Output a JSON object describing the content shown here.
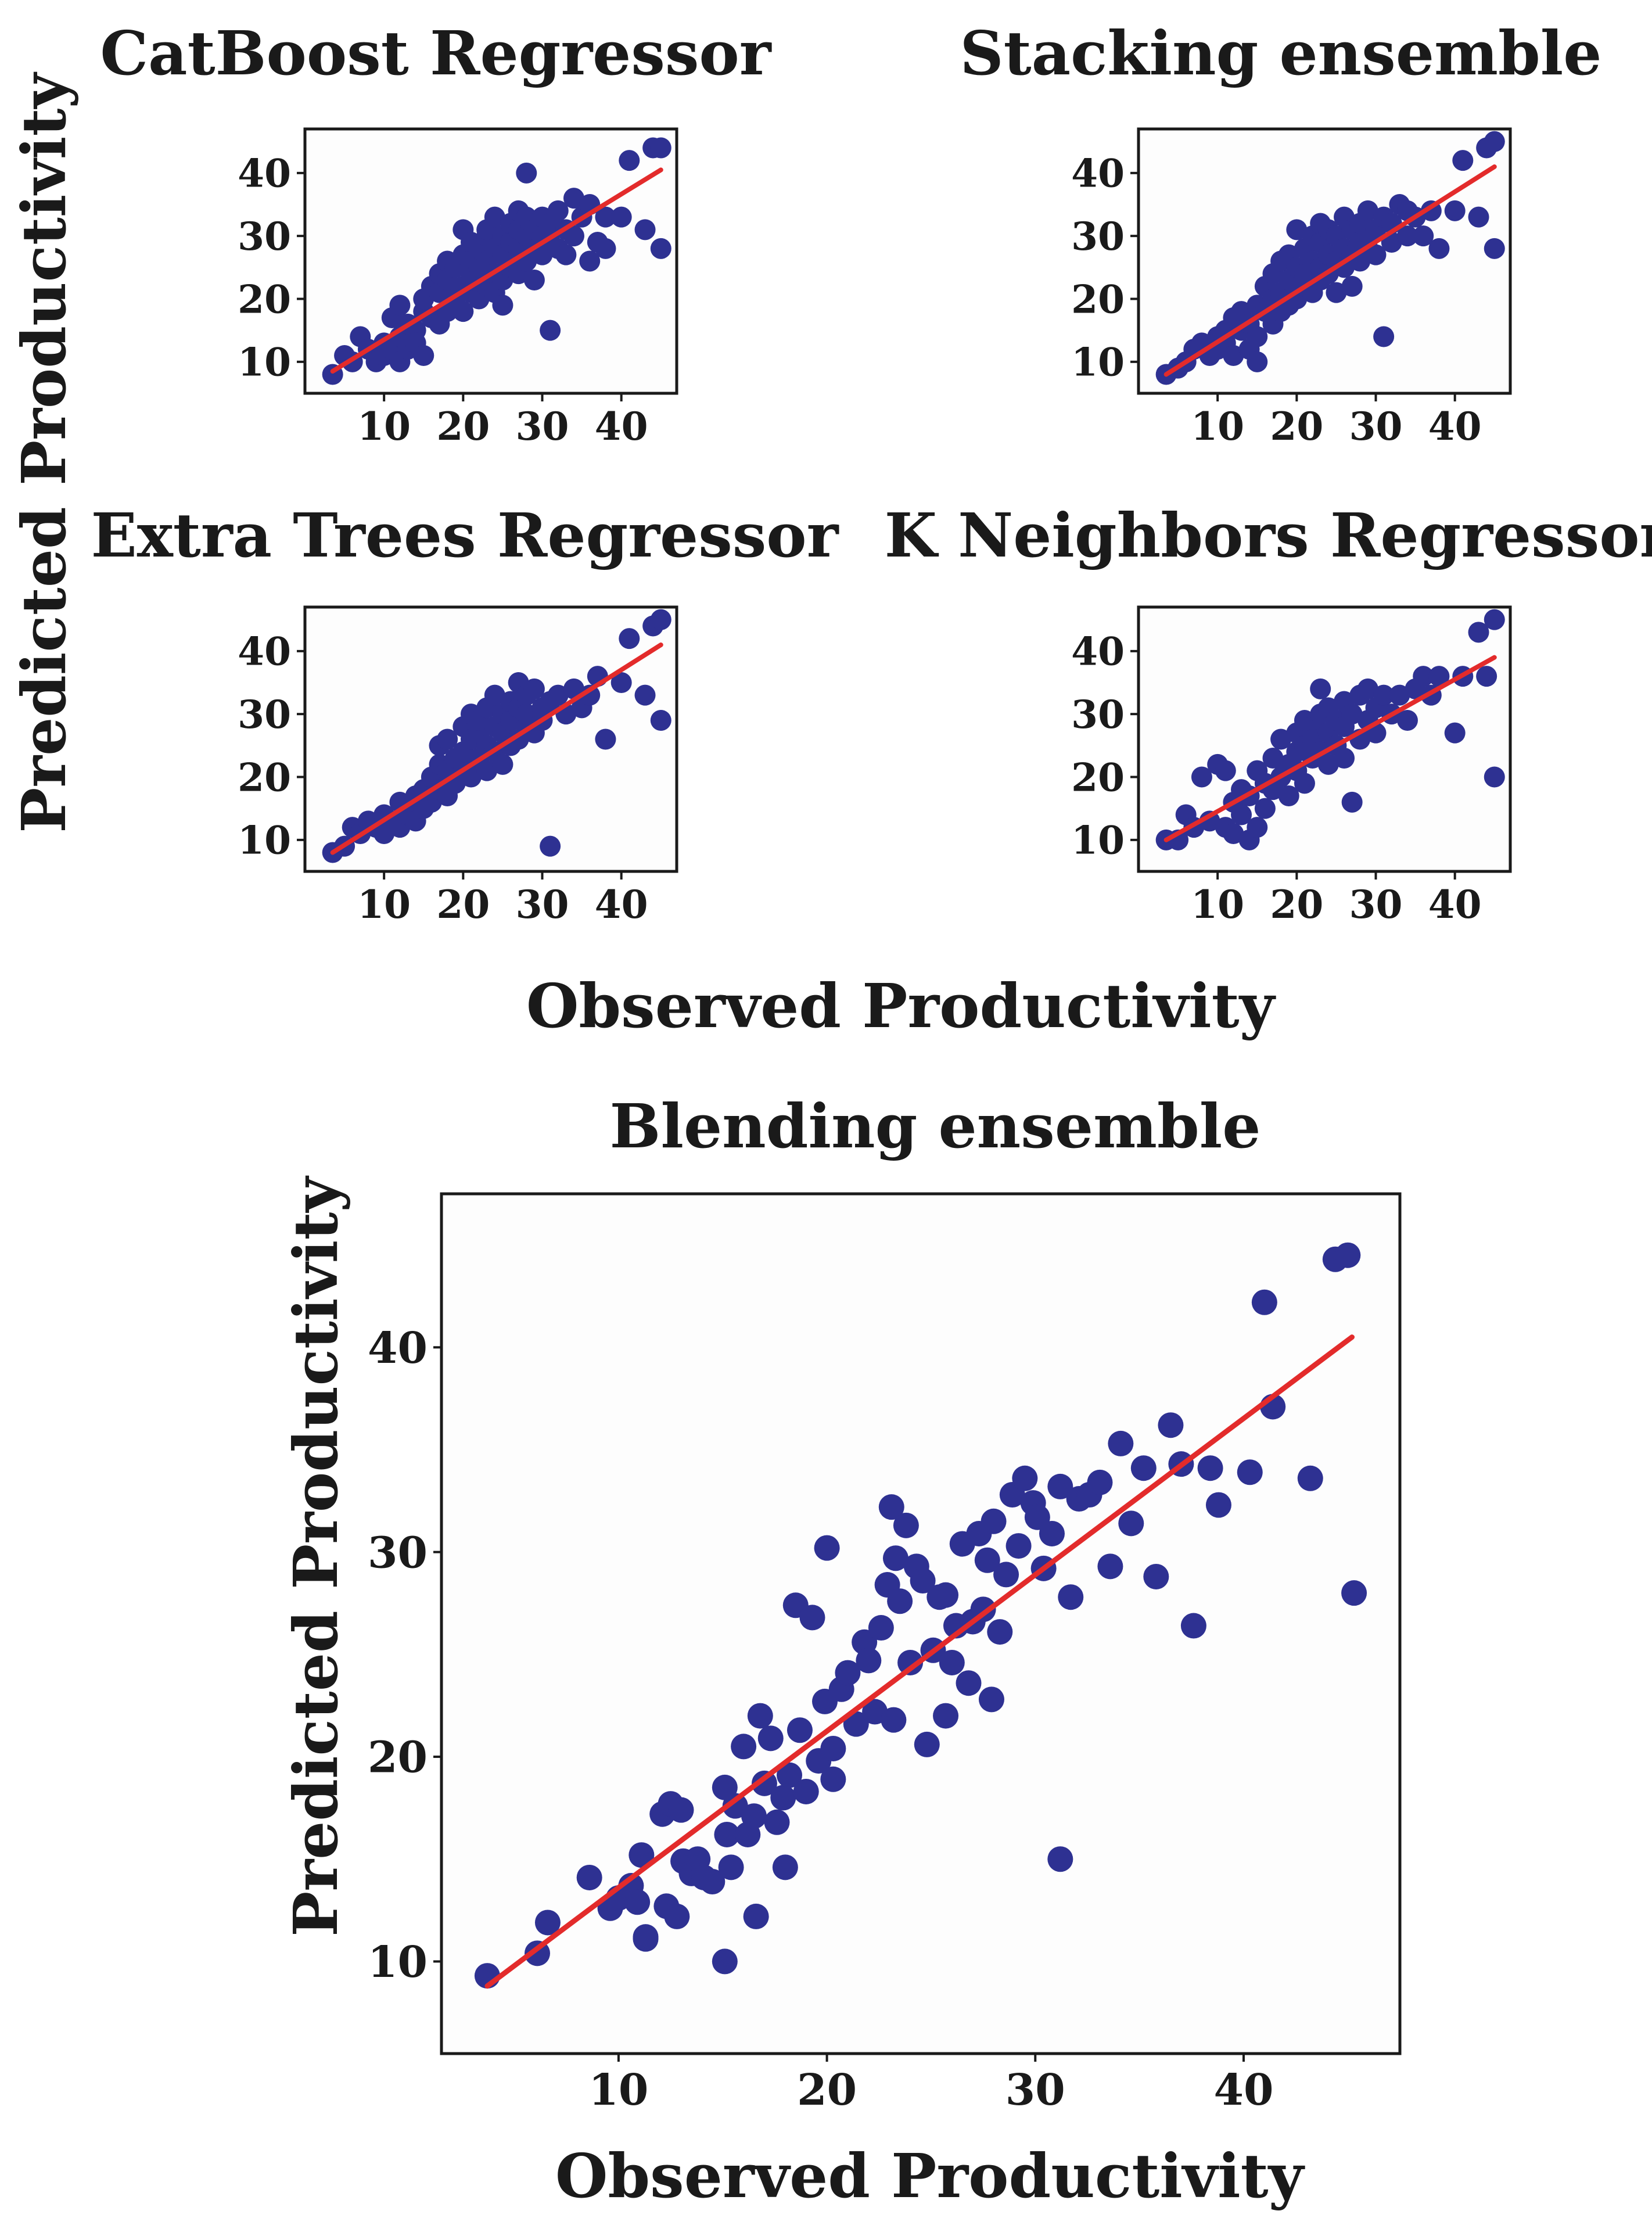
{
  "figure": {
    "shared_ylabel": "Predicted Productivity",
    "shared_xlabel": "Observed Productivity"
  },
  "colors": {
    "point": "#2e3192",
    "fit_line": "#e32b2b",
    "axes": "#1a1a1a",
    "panel_bg": "#fdfdfd"
  },
  "chart_data": [
    {
      "type": "scatter",
      "title": "CatBoost Regressor",
      "xlabel": "",
      "ylabel": "",
      "xlim": [
        0,
        47
      ],
      "ylim": [
        5,
        47
      ],
      "xticks": [
        10,
        20,
        30,
        40
      ],
      "yticks": [
        10,
        20,
        30,
        40
      ],
      "x": [
        3.5,
        5,
        6,
        7,
        8,
        9,
        10,
        10,
        11,
        11,
        12,
        12,
        12,
        13,
        13,
        14,
        14,
        15,
        15,
        15,
        16,
        16,
        17,
        17,
        17,
        18,
        18,
        18,
        19,
        19,
        19,
        20,
        20,
        20,
        20,
        21,
        21,
        21,
        21,
        22,
        22,
        22,
        22,
        23,
        23,
        23,
        23,
        24,
        24,
        24,
        24,
        25,
        25,
        25,
        25,
        26,
        26,
        26,
        27,
        27,
        27,
        27,
        28,
        28,
        28,
        28,
        29,
        29,
        29,
        30,
        30,
        30,
        31,
        31,
        31,
        32,
        32,
        33,
        33,
        34,
        34,
        35,
        36,
        36,
        37,
        38,
        38,
        40,
        41,
        43,
        44,
        45,
        45
      ],
      "y": [
        8,
        11,
        10,
        14,
        12,
        10,
        13,
        11,
        17,
        12,
        14,
        10,
        19,
        16,
        12,
        15,
        13,
        18,
        11,
        20,
        17,
        22,
        21,
        16,
        24,
        18,
        23,
        26,
        20,
        25,
        19,
        22,
        27,
        31,
        18,
        24,
        21,
        29,
        26,
        23,
        28,
        20,
        25,
        30,
        22,
        26,
        31,
        24,
        28,
        33,
        21,
        27,
        23,
        30,
        19,
        29,
        25,
        32,
        28,
        24,
        31,
        34,
        30,
        26,
        33,
        40,
        28,
        31,
        23,
        27,
        33,
        30,
        29,
        32,
        15,
        34,
        28,
        31,
        27,
        36,
        30,
        33,
        35,
        26,
        29,
        33,
        28,
        33,
        42,
        31,
        44,
        44,
        28
      ],
      "fit_line": {
        "x": [
          3.5,
          45
        ],
        "y": [
          8.5,
          40.5
        ]
      }
    },
    {
      "type": "scatter",
      "title": "Stacking ensemble",
      "xlabel": "",
      "ylabel": "",
      "xlim": [
        0,
        47
      ],
      "ylim": [
        5,
        47
      ],
      "xticks": [
        10,
        20,
        30,
        40
      ],
      "yticks": [
        10,
        20,
        30,
        40
      ],
      "x": [
        3.5,
        5,
        6,
        7,
        8,
        9,
        10,
        10,
        11,
        11,
        12,
        12,
        13,
        13,
        14,
        14,
        15,
        15,
        15,
        16,
        16,
        17,
        17,
        17,
        18,
        18,
        18,
        19,
        19,
        19,
        20,
        20,
        20,
        21,
        21,
        21,
        22,
        22,
        22,
        23,
        23,
        23,
        23,
        24,
        24,
        24,
        25,
        25,
        25,
        26,
        26,
        26,
        27,
        27,
        27,
        28,
        28,
        28,
        29,
        29,
        29,
        30,
        30,
        31,
        31,
        32,
        32,
        33,
        34,
        34,
        35,
        36,
        37,
        38,
        40,
        41,
        43,
        44,
        45,
        45
      ],
      "y": [
        8,
        9,
        10,
        12,
        13,
        11,
        14,
        12,
        15,
        13,
        17,
        11,
        18,
        15,
        16,
        12,
        19,
        14,
        10,
        18,
        22,
        20,
        16,
        24,
        21,
        26,
        18,
        23,
        19,
        27,
        25,
        31,
        20,
        22,
        28,
        24,
        26,
        21,
        30,
        23,
        29,
        25,
        32,
        24,
        27,
        31,
        26,
        30,
        21,
        28,
        33,
        25,
        27,
        31,
        22,
        29,
        32,
        26,
        28,
        34,
        30,
        31,
        27,
        33,
        14,
        29,
        32,
        35,
        30,
        34,
        33,
        30,
        34,
        28,
        34,
        42,
        33,
        44,
        45,
        28
      ],
      "fit_line": {
        "x": [
          3.5,
          45
        ],
        "y": [
          8,
          41
        ]
      }
    },
    {
      "type": "scatter",
      "title": "Extra Trees Regressor",
      "xlabel": "",
      "ylabel": "",
      "xlim": [
        0,
        47
      ],
      "ylim": [
        5,
        47
      ],
      "xticks": [
        10,
        20,
        30,
        40
      ],
      "yticks": [
        10,
        20,
        30,
        40
      ],
      "x": [
        3.5,
        5,
        6,
        7,
        8,
        9,
        10,
        10,
        11,
        12,
        12,
        13,
        13,
        14,
        14,
        15,
        15,
        16,
        16,
        17,
        17,
        17,
        18,
        18,
        18,
        19,
        19,
        20,
        20,
        20,
        21,
        21,
        21,
        22,
        22,
        22,
        23,
        23,
        23,
        24,
        24,
        24,
        25,
        25,
        25,
        26,
        26,
        26,
        27,
        27,
        27,
        28,
        28,
        28,
        29,
        29,
        30,
        30,
        31,
        31,
        32,
        33,
        34,
        35,
        36,
        37,
        38,
        40,
        41,
        43,
        44,
        45,
        45
      ],
      "y": [
        8,
        9,
        12,
        11,
        13,
        12,
        14,
        11,
        13,
        16,
        12,
        15,
        14,
        17,
        13,
        18,
        15,
        20,
        16,
        22,
        18,
        25,
        21,
        26,
        17,
        23,
        19,
        28,
        22,
        24,
        26,
        20,
        30,
        23,
        27,
        29,
        25,
        31,
        21,
        28,
        24,
        33,
        27,
        30,
        22,
        29,
        25,
        32,
        31,
        26,
        35,
        28,
        33,
        30,
        27,
        34,
        31,
        29,
        32,
        9,
        33,
        30,
        34,
        31,
        33,
        36,
        26,
        35,
        42,
        33,
        44,
        45,
        29
      ],
      "fit_line": {
        "x": [
          3.5,
          45
        ],
        "y": [
          8,
          41
        ]
      }
    },
    {
      "type": "scatter",
      "title": "K Neighbors Regressor",
      "xlabel": "",
      "ylabel": "",
      "xlim": [
        0,
        47
      ],
      "ylim": [
        5,
        47
      ],
      "xticks": [
        10,
        20,
        30,
        40
      ],
      "yticks": [
        10,
        20,
        30,
        40
      ],
      "x": [
        3.5,
        5,
        6,
        7,
        8,
        9,
        10,
        11,
        11,
        12,
        12,
        13,
        13,
        14,
        14,
        15,
        15,
        16,
        16,
        17,
        17,
        18,
        18,
        19,
        19,
        20,
        20,
        20,
        21,
        21,
        21,
        22,
        22,
        22,
        23,
        23,
        23,
        24,
        24,
        24,
        25,
        25,
        26,
        26,
        26,
        27,
        27,
        28,
        28,
        29,
        29,
        30,
        30,
        31,
        32,
        33,
        34,
        35,
        36,
        37,
        38,
        40,
        41,
        43,
        44,
        45,
        45
      ],
      "y": [
        10,
        10,
        14,
        12,
        20,
        13,
        22,
        12,
        21,
        16,
        11,
        18,
        14,
        10,
        17,
        21,
        12,
        19,
        15,
        23,
        18,
        26,
        20,
        22,
        17,
        27,
        24,
        21,
        25,
        29,
        19,
        23,
        28,
        26,
        30,
        24,
        34,
        22,
        27,
        31,
        25,
        29,
        28,
        23,
        32,
        30,
        16,
        26,
        33,
        29,
        34,
        31,
        27,
        33,
        30,
        33,
        29,
        34,
        36,
        33,
        36,
        27,
        36,
        43,
        36,
        45,
        20
      ],
      "fit_line": {
        "x": [
          3.5,
          45
        ],
        "y": [
          10,
          39
        ]
      }
    },
    {
      "type": "scatter",
      "title": "Blending ensemble",
      "xlabel": "Observed Productivity",
      "ylabel": "Predicted Productivity",
      "xlim": [
        1.5,
        47.5
      ],
      "ylim": [
        5.5,
        47.5
      ],
      "xticks": [
        10,
        20,
        30,
        40
      ],
      "yticks": [
        10,
        20,
        30,
        40
      ],
      "x": [
        3.7,
        6.1,
        6.6,
        8.6,
        9.6,
        10.0,
        10.6,
        10.9,
        11.1,
        11.3,
        12.1,
        12.3,
        12.5,
        12.8,
        13.1,
        13.5,
        13.8,
        14.1,
        14.5,
        15.1,
        15.2,
        15.4,
        15.6,
        16.0,
        16.2,
        16.5,
        16.8,
        17.0,
        17.3,
        17.6,
        17.9,
        18.2,
        18.5,
        18.7,
        19.0,
        19.3,
        19.6,
        19.9,
        20.0,
        20.3,
        20.7,
        21.0,
        21.4,
        21.8,
        22.0,
        22.3,
        22.6,
        22.9,
        23.1,
        23.3,
        23.5,
        23.8,
        24.0,
        24.3,
        24.6,
        24.8,
        25.1,
        25.4,
        25.7,
        26.0,
        26.2,
        26.5,
        26.8,
        27.0,
        27.3,
        27.5,
        27.7,
        28.0,
        28.3,
        28.6,
        28.9,
        29.2,
        29.5,
        29.9,
        30.1,
        30.4,
        30.8,
        31.2,
        31.7,
        32.1,
        32.6,
        33.1,
        33.6,
        34.1,
        34.6,
        35.2,
        35.8,
        36.5,
        37.0,
        37.6,
        38.4,
        38.8,
        40.3,
        41.0,
        41.4,
        43.2,
        44.4,
        45.0,
        45.3,
        31.2,
        15.1,
        16.6,
        18.0,
        13.0,
        11.3,
        25.7,
        27.9,
        23.2,
        20.3
      ],
      "y": [
        9.3,
        10.4,
        11.9,
        14.1,
        12.6,
        13.1,
        13.7,
        12.9,
        15.2,
        11.2,
        17.2,
        12.7,
        17.7,
        12.2,
        14.9,
        14.3,
        15.0,
        14.1,
        13.9,
        10.0,
        16.2,
        14.6,
        17.6,
        20.5,
        16.2,
        17.1,
        22.0,
        18.7,
        20.9,
        16.8,
        18.0,
        19.1,
        27.4,
        21.3,
        18.3,
        26.8,
        19.8,
        22.7,
        30.2,
        20.4,
        23.3,
        24.1,
        21.6,
        25.6,
        24.7,
        22.2,
        26.3,
        28.4,
        32.2,
        29.7,
        27.6,
        31.3,
        24.6,
        29.3,
        28.6,
        20.6,
        25.2,
        27.8,
        27.9,
        24.6,
        26.4,
        30.4,
        23.6,
        26.6,
        30.9,
        27.2,
        29.6,
        31.5,
        26.1,
        28.9,
        32.8,
        30.3,
        33.6,
        32.4,
        31.7,
        29.2,
        30.9,
        33.2,
        27.8,
        32.6,
        32.8,
        33.4,
        29.3,
        35.3,
        31.4,
        34.1,
        28.8,
        36.2,
        34.3,
        26.4,
        34.1,
        32.3,
        33.9,
        42.2,
        37.1,
        33.6,
        44.3,
        44.5,
        28.0,
        15.0,
        18.5,
        12.2,
        14.6,
        17.4,
        11.1,
        22.0,
        22.8,
        21.8,
        18.9
      ],
      "fit_line": {
        "x": [
          3.7,
          45.2
        ],
        "y": [
          8.8,
          40.5
        ]
      }
    }
  ]
}
